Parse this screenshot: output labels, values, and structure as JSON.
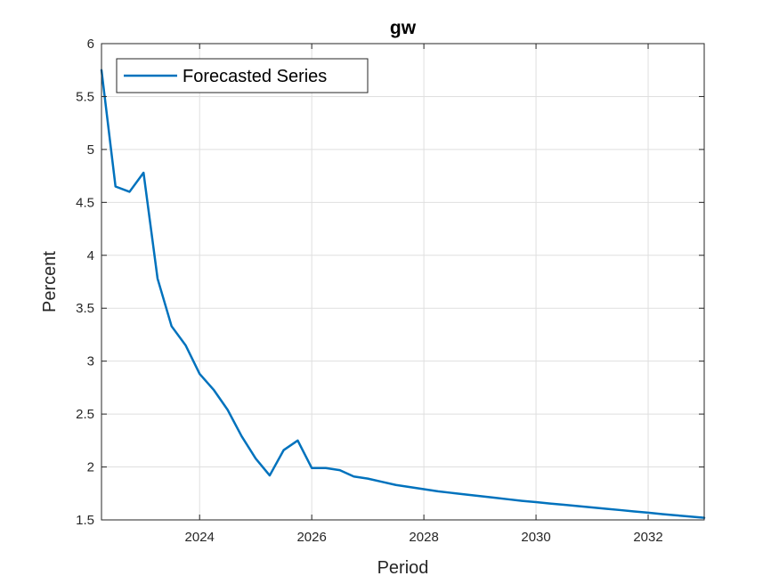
{
  "chart_data": {
    "type": "line",
    "title": "gw",
    "xlabel": "Period",
    "ylabel": "Percent",
    "xlim": [
      2022.25,
      2033.0
    ],
    "ylim": [
      1.5,
      6.0
    ],
    "x_ticks": [
      2024,
      2026,
      2028,
      2030,
      2032
    ],
    "x_tick_labels": [
      "2024",
      "2026",
      "2028",
      "2030",
      "2032"
    ],
    "y_ticks": [
      1.5,
      2,
      2.5,
      3,
      3.5,
      4,
      4.5,
      5,
      5.5,
      6
    ],
    "y_tick_labels": [
      "1.5",
      "2",
      "2.5",
      "3",
      "3.5",
      "4",
      "4.5",
      "5",
      "5.5",
      "6"
    ],
    "grid": true,
    "legend_position": "top-left",
    "series": [
      {
        "name": "Forecasted Series",
        "color": "#0072BD",
        "x": [
          2022.25,
          2022.5,
          2022.75,
          2023.0,
          2023.25,
          2023.5,
          2023.75,
          2024.0,
          2024.25,
          2024.5,
          2024.75,
          2025.0,
          2025.25,
          2025.5,
          2025.75,
          2026.0,
          2026.25,
          2026.5,
          2026.75,
          2027.0,
          2027.25,
          2027.5,
          2027.75,
          2028.0,
          2028.25,
          2028.5,
          2028.75,
          2029.0,
          2029.25,
          2029.5,
          2029.75,
          2030.0,
          2030.25,
          2030.5,
          2030.75,
          2031.0,
          2031.25,
          2031.5,
          2031.75,
          2032.0,
          2032.25,
          2032.5,
          2032.75,
          2033.0
        ],
        "y": [
          5.75,
          4.65,
          4.6,
          4.78,
          3.78,
          3.33,
          3.15,
          2.88,
          2.73,
          2.54,
          2.29,
          2.08,
          1.92,
          2.16,
          2.25,
          1.99,
          1.99,
          1.97,
          1.91,
          1.89,
          1.86,
          1.83,
          1.81,
          1.79,
          1.77,
          1.755,
          1.74,
          1.725,
          1.71,
          1.695,
          1.68,
          1.668,
          1.655,
          1.643,
          1.63,
          1.618,
          1.605,
          1.593,
          1.58,
          1.568,
          1.555,
          1.543,
          1.532,
          1.52
        ]
      }
    ]
  }
}
